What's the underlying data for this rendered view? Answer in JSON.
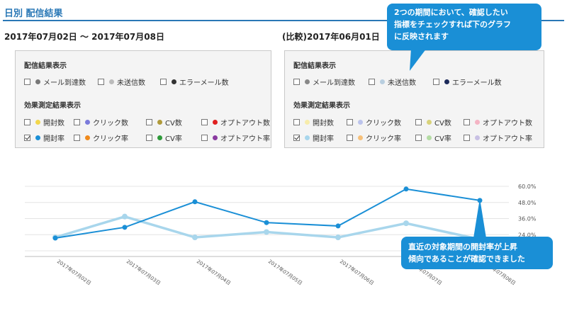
{
  "header": {
    "title": "日別 配信結果"
  },
  "periods": {
    "current": "2017年07月02日 ～ 2017年07月08日",
    "compare": "(比較)2017年06月01日"
  },
  "panels": [
    {
      "delivery_title": "配信結果表示",
      "delivery": [
        {
          "label": "メール到達数",
          "color": "#777777",
          "checked": false
        },
        {
          "label": "未送信数",
          "color": "#bbbbbb",
          "checked": false
        },
        {
          "label": "エラーメール数",
          "color": "#333333",
          "checked": false
        }
      ],
      "effect_title": "効果測定結果表示",
      "effect_row1": [
        {
          "label": "開封数",
          "color": "#f2d64b",
          "checked": false
        },
        {
          "label": "クリック数",
          "color": "#7b7bdb",
          "checked": false
        },
        {
          "label": "CV数",
          "color": "#b09a3a",
          "checked": false
        },
        {
          "label": "オプトアウト数",
          "color": "#e02020",
          "checked": false
        }
      ],
      "effect_row2": [
        {
          "label": "開封率",
          "color": "#1a8fd6",
          "checked": true
        },
        {
          "label": "クリック率",
          "color": "#f08a1c",
          "checked": false
        },
        {
          "label": "CV率",
          "color": "#2e9a3a",
          "checked": false
        },
        {
          "label": "オプトアウト率",
          "color": "#8a3aa0",
          "checked": false
        }
      ]
    },
    {
      "delivery_title": "配信結果表示",
      "delivery": [
        {
          "label": "メール到達数",
          "color": "#888888",
          "checked": false
        },
        {
          "label": "未送信数",
          "color": "#b9cfe0",
          "checked": false
        },
        {
          "label": "エラーメール数",
          "color": "#1c2a5a",
          "checked": false
        }
      ],
      "effect_title": "効果測定結果表示",
      "effect_row1": [
        {
          "label": "開封数",
          "color": "#f7ecab",
          "checked": false
        },
        {
          "label": "クリック数",
          "color": "#bcc4ec",
          "checked": false
        },
        {
          "label": "CV数",
          "color": "#d8d27a",
          "checked": false
        },
        {
          "label": "オプトアウト数",
          "color": "#f4b4c4",
          "checked": false
        }
      ],
      "effect_row2": [
        {
          "label": "開封率",
          "color": "#a8d6ec",
          "checked": true
        },
        {
          "label": "クリック率",
          "color": "#f6c07a",
          "checked": false
        },
        {
          "label": "CV率",
          "color": "#b4dca4",
          "checked": false
        },
        {
          "label": "オプトアウト率",
          "color": "#c8c0e4",
          "checked": false
        }
      ]
    }
  ],
  "callouts": {
    "top": [
      "2つの期間において、確認したい",
      "指標をチェックすれば下のグラフ",
      "に反映されます"
    ],
    "bottom": [
      "直近の対象期間の開封率が上昇",
      "傾向であることが確認できました"
    ]
  },
  "chart_data": {
    "type": "line",
    "categories": [
      "2017年07月02日",
      "2017年07月03日",
      "2017年07月04日",
      "2017年07月05日",
      "2017年07月06日",
      "2017年07月07日",
      "2017年07月08日"
    ],
    "y_ticks": [
      "60.0%",
      "48.0%",
      "36.0%",
      "24.0%",
      "12.0%"
    ],
    "ylim": [
      12,
      60
    ],
    "grid": true,
    "series": [
      {
        "values": [
          21.5,
          29.5,
          48.5,
          33,
          30.5,
          58,
          49.5
        ],
        "color": "#1a8fd6"
      },
      {
        "values": [
          22,
          37.5,
          22,
          26,
          22,
          32.5,
          20.5
        ],
        "color": "#a8d6ec"
      }
    ]
  }
}
